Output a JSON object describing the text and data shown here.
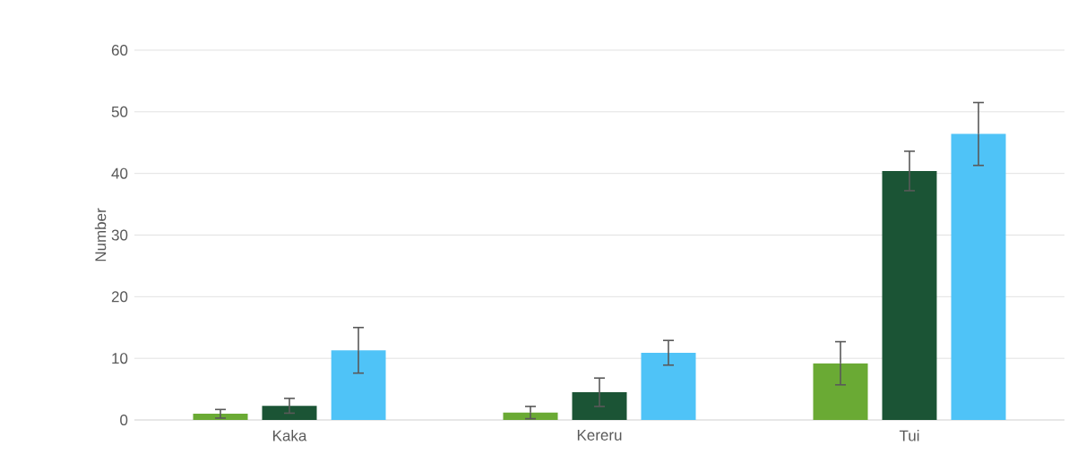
{
  "chart_data": {
    "type": "bar",
    "ylabel": "Number",
    "categories": [
      "Kaka",
      "Kereru",
      "Tui"
    ],
    "series": [
      {
        "color": "#6aaa34",
        "values": [
          1.0,
          1.2,
          9.2
        ],
        "errors": [
          0.7,
          1.0,
          3.5
        ]
      },
      {
        "color": "#1b5435",
        "values": [
          2.3,
          4.5,
          40.4
        ],
        "errors": [
          1.2,
          2.3,
          3.2
        ]
      },
      {
        "color": "#4fc3f7",
        "values": [
          11.3,
          10.9,
          46.4
        ],
        "errors": [
          3.7,
          2.0,
          5.1
        ]
      }
    ],
    "ylim": [
      0,
      60
    ],
    "yticks": [
      0,
      10,
      20,
      30,
      40,
      50,
      60
    ],
    "grid": "y"
  }
}
